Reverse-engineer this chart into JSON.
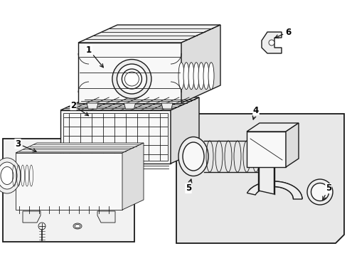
{
  "bg_color": "#ffffff",
  "line_color": "#1a1a1a",
  "label_color": "#000000",
  "fill_light": "#f8f8f8",
  "fill_mid": "#eeeeee",
  "fill_dark": "#dddddd",
  "fill_panel": "#e8e8e8",
  "lw_main": 1.0,
  "lw_thin": 0.6,
  "lw_thick": 1.3
}
